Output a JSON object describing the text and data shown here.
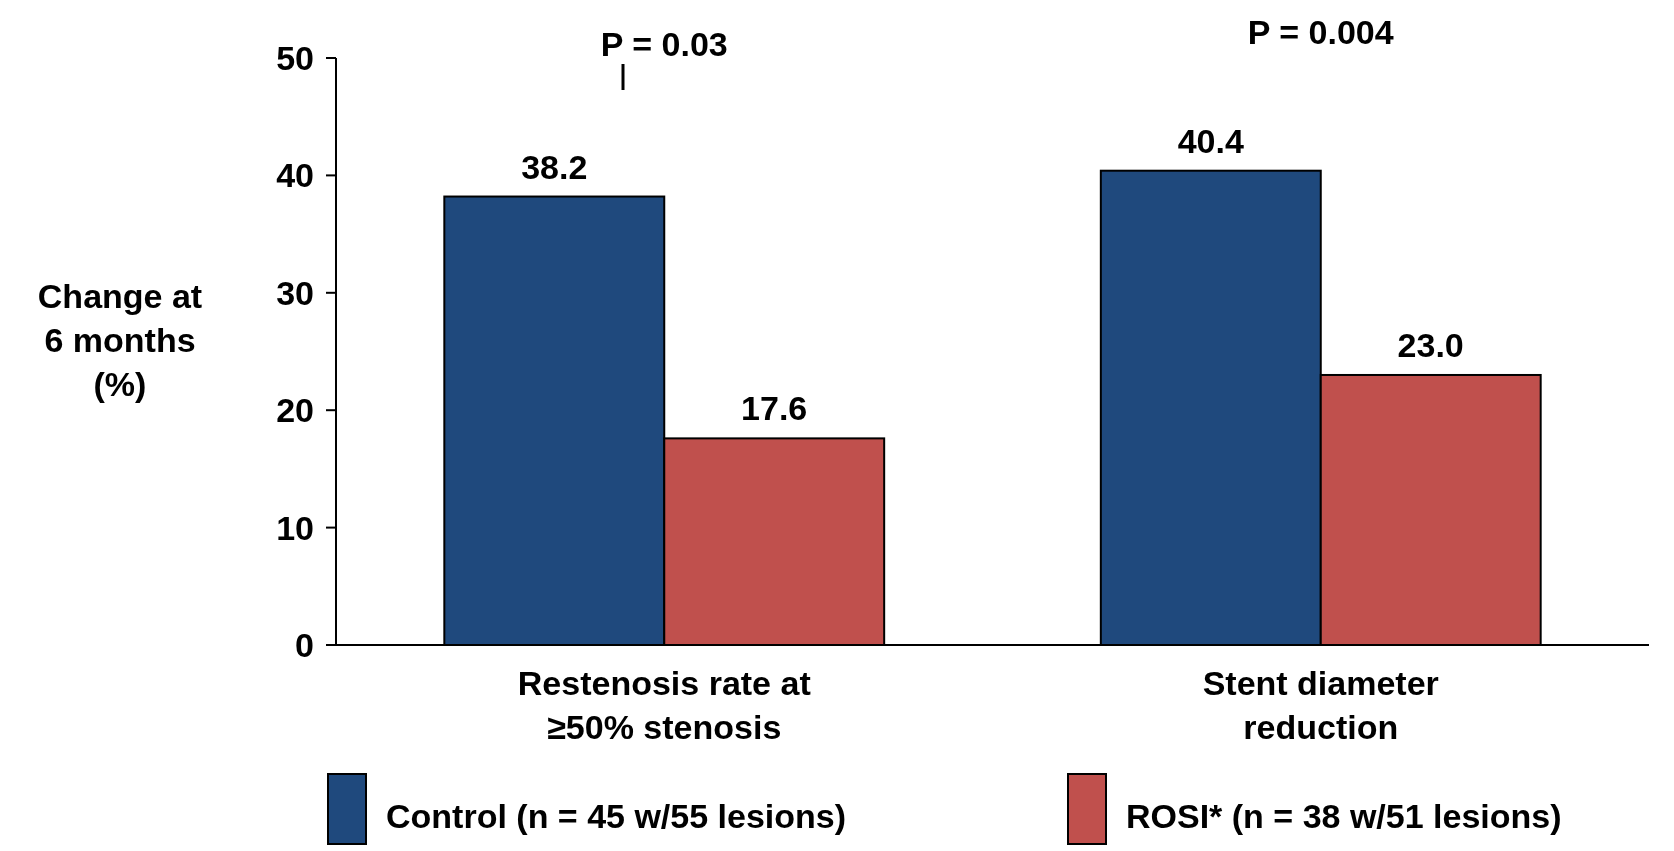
{
  "chart_data": {
    "type": "bar",
    "ylabel": "Change at 6 months (%)",
    "categories": [
      "Restenosis rate at ≥50% stenosis",
      "Stent diameter reduction"
    ],
    "series": [
      {
        "name": "Control (n = 45 w/55 lesions)",
        "color": "#1f497d",
        "values": [
          38.2,
          40.4
        ],
        "value_labels": [
          "38.2",
          "40.4"
        ]
      },
      {
        "name": "ROSI* (n = 38 w/51 lesions)",
        "color": "#c0504d",
        "values": [
          17.6,
          23.0
        ],
        "value_labels": [
          "17.6",
          "23.0"
        ]
      }
    ],
    "ylim": [
      0,
      50
    ],
    "yticks": [
      0,
      10,
      20,
      30,
      40,
      50
    ],
    "grid": false,
    "legend": "bottom",
    "annotations": [
      "P = 0.03",
      "P = 0.004"
    ]
  }
}
